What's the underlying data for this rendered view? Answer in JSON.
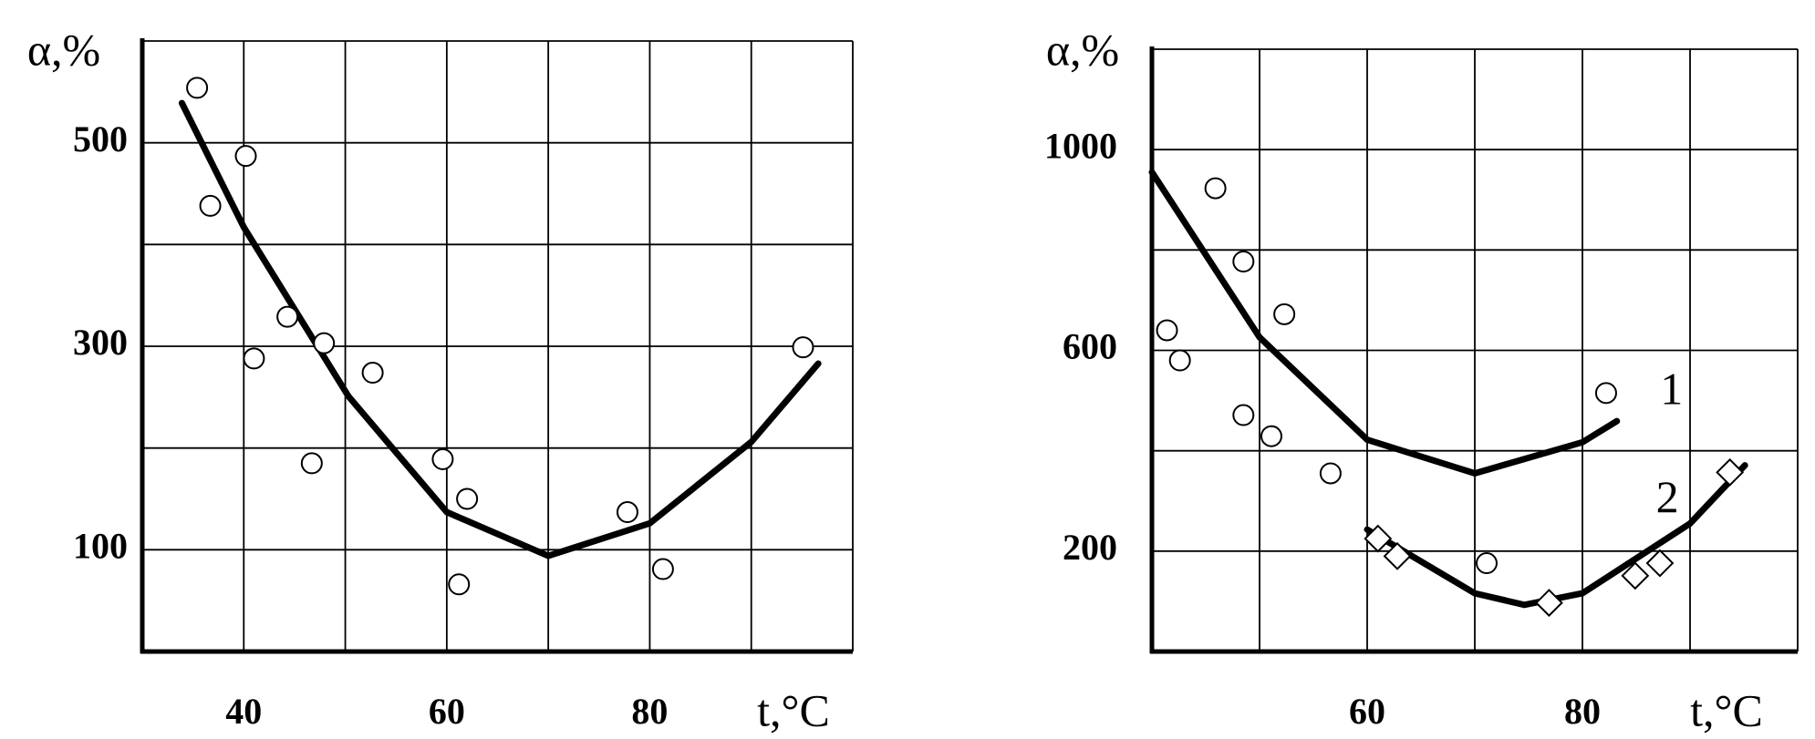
{
  "chart_data": [
    {
      "type": "scatter",
      "ylabel": "α,%",
      "xlabel": "t,°C",
      "xlim": [
        30,
        100
      ],
      "ylim": [
        0,
        600
      ],
      "xticks": [
        40,
        60,
        80
      ],
      "yticks": [
        100,
        300,
        500
      ],
      "xgrid": [
        40,
        50,
        60,
        70,
        80,
        90,
        100
      ],
      "ygrid": [
        100,
        200,
        300,
        400,
        500,
        600
      ],
      "series": [
        {
          "marker": "circle",
          "x": [
            35.4,
            40.2,
            36.7,
            44.3,
            41.0,
            47.9,
            52.7,
            46.7,
            59.6,
            62.0,
            61.2,
            77.8,
            81.3,
            95.1
          ],
          "y": [
            554,
            487,
            438,
            329,
            288,
            303,
            274,
            185,
            189,
            150,
            66,
            137,
            81,
            299
          ]
        }
      ],
      "curves": [
        {
          "x": [
            33.9,
            40,
            50.3,
            60,
            70,
            80,
            90,
            96.6
          ],
          "y": [
            539,
            417,
            251,
            137,
            94,
            126,
            206,
            283
          ]
        }
      ]
    },
    {
      "type": "scatter",
      "ylabel": "α,%",
      "xlabel": "t,°C",
      "xlim": [
        40,
        100
      ],
      "ylim": [
        0,
        1200
      ],
      "xticks": [
        60,
        80
      ],
      "yticks": [
        200,
        600,
        1000
      ],
      "xgrid": [
        50,
        60,
        70,
        80,
        90,
        100
      ],
      "ygrid": [
        200,
        400,
        600,
        800,
        1000,
        1200
      ],
      "series": [
        {
          "marker": "circle",
          "x": [
            41.4,
            42.6,
            45.9,
            48.5,
            48.5,
            52.3,
            51.1,
            56.6,
            71.1,
            82.2
          ],
          "y": [
            640,
            580,
            923,
            777,
            471,
            672,
            429,
            355,
            176,
            515
          ]
        },
        {
          "marker": "diamond",
          "x": [
            61.0,
            62.8,
            76.9,
            84.9,
            87.2,
            93.7
          ],
          "y": [
            225,
            190,
            97,
            151,
            176,
            357
          ]
        }
      ],
      "curves": [
        {
          "name": "1",
          "x": [
            40,
            50,
            60,
            70,
            80,
            83.2
          ],
          "y": [
            955,
            626,
            422,
            355,
            417,
            459
          ]
        },
        {
          "name": "2",
          "x": [
            60,
            70,
            74.6,
            80,
            90,
            95.1
          ],
          "y": [
            243,
            116,
            93,
            116,
            255,
            371
          ]
        }
      ]
    }
  ]
}
